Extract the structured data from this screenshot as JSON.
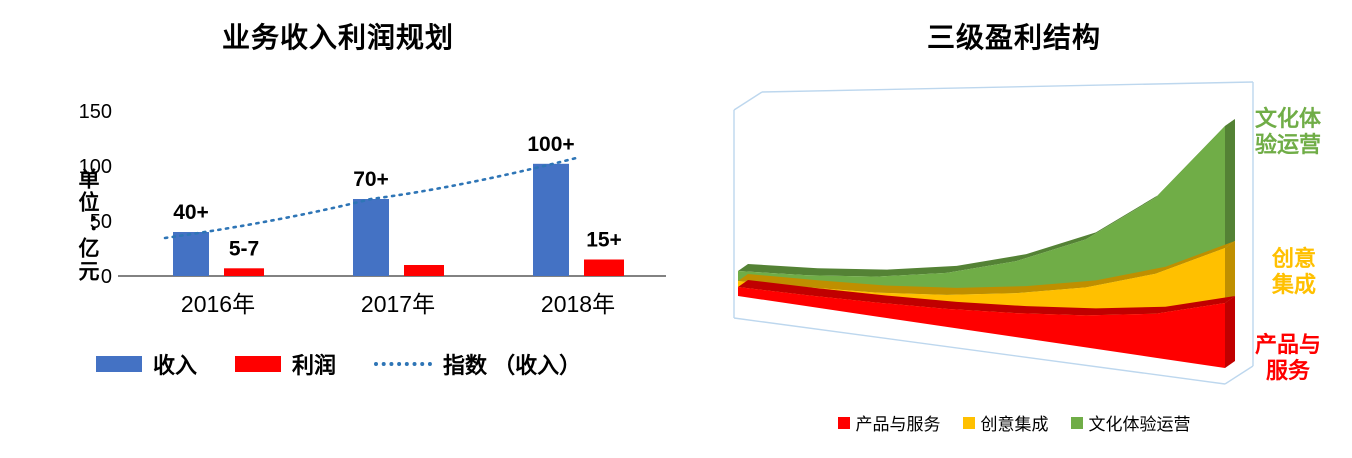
{
  "chart_data": [
    {
      "type": "bar",
      "title": "业务收入利润规划",
      "ylabel": "单位：亿元",
      "categories": [
        "2016年",
        "2017年",
        "2018年"
      ],
      "yticks": [
        0,
        50,
        100,
        150
      ],
      "ylim": [
        0,
        150
      ],
      "legend_position": "bottom",
      "series": [
        {
          "name": "收入",
          "type": "bar",
          "color": "#4472C4",
          "values": [
            40,
            70,
            102
          ],
          "data_labels": [
            "40+",
            "70+",
            "100+"
          ]
        },
        {
          "name": "利润",
          "type": "bar",
          "color": "#FF0000",
          "values": [
            7,
            10,
            15
          ],
          "data_labels": [
            "5-7",
            "",
            "15+"
          ]
        },
        {
          "name": "指数 （收入）",
          "type": "dotted-line",
          "color": "#2E75B6",
          "values": [
            40,
            70,
            102
          ]
        }
      ]
    },
    {
      "type": "area",
      "style": "3d-stacked",
      "title": "三级盈利结构",
      "x_points": 8,
      "frame_color": "#BDD7EE",
      "legend_position": "bottom",
      "series": [
        {
          "name": "产品与服务",
          "color": "#FF0000",
          "edge_color": "#C00000",
          "values": [
            9,
            11,
            14,
            18,
            24,
            32,
            44,
            65
          ]
        },
        {
          "name": "创意集成",
          "color": "#FFC000",
          "edge_color": "#BF8F00",
          "values": [
            6,
            8,
            10,
            14,
            20,
            28,
            40,
            55
          ]
        },
        {
          "name": "文化体验运营",
          "color": "#70AD47",
          "edge_color": "#548235",
          "values": [
            10,
            12,
            16,
            22,
            32,
            48,
            76,
            122
          ]
        }
      ],
      "side_labels": [
        {
          "line1": "文化体",
          "line2": "验运营",
          "color": "#70AD47"
        },
        {
          "line1": "创意",
          "line2": "集成",
          "color": "#FFC000"
        },
        {
          "line1": "产品与",
          "line2": "服务",
          "color": "#FF0000"
        }
      ]
    }
  ]
}
